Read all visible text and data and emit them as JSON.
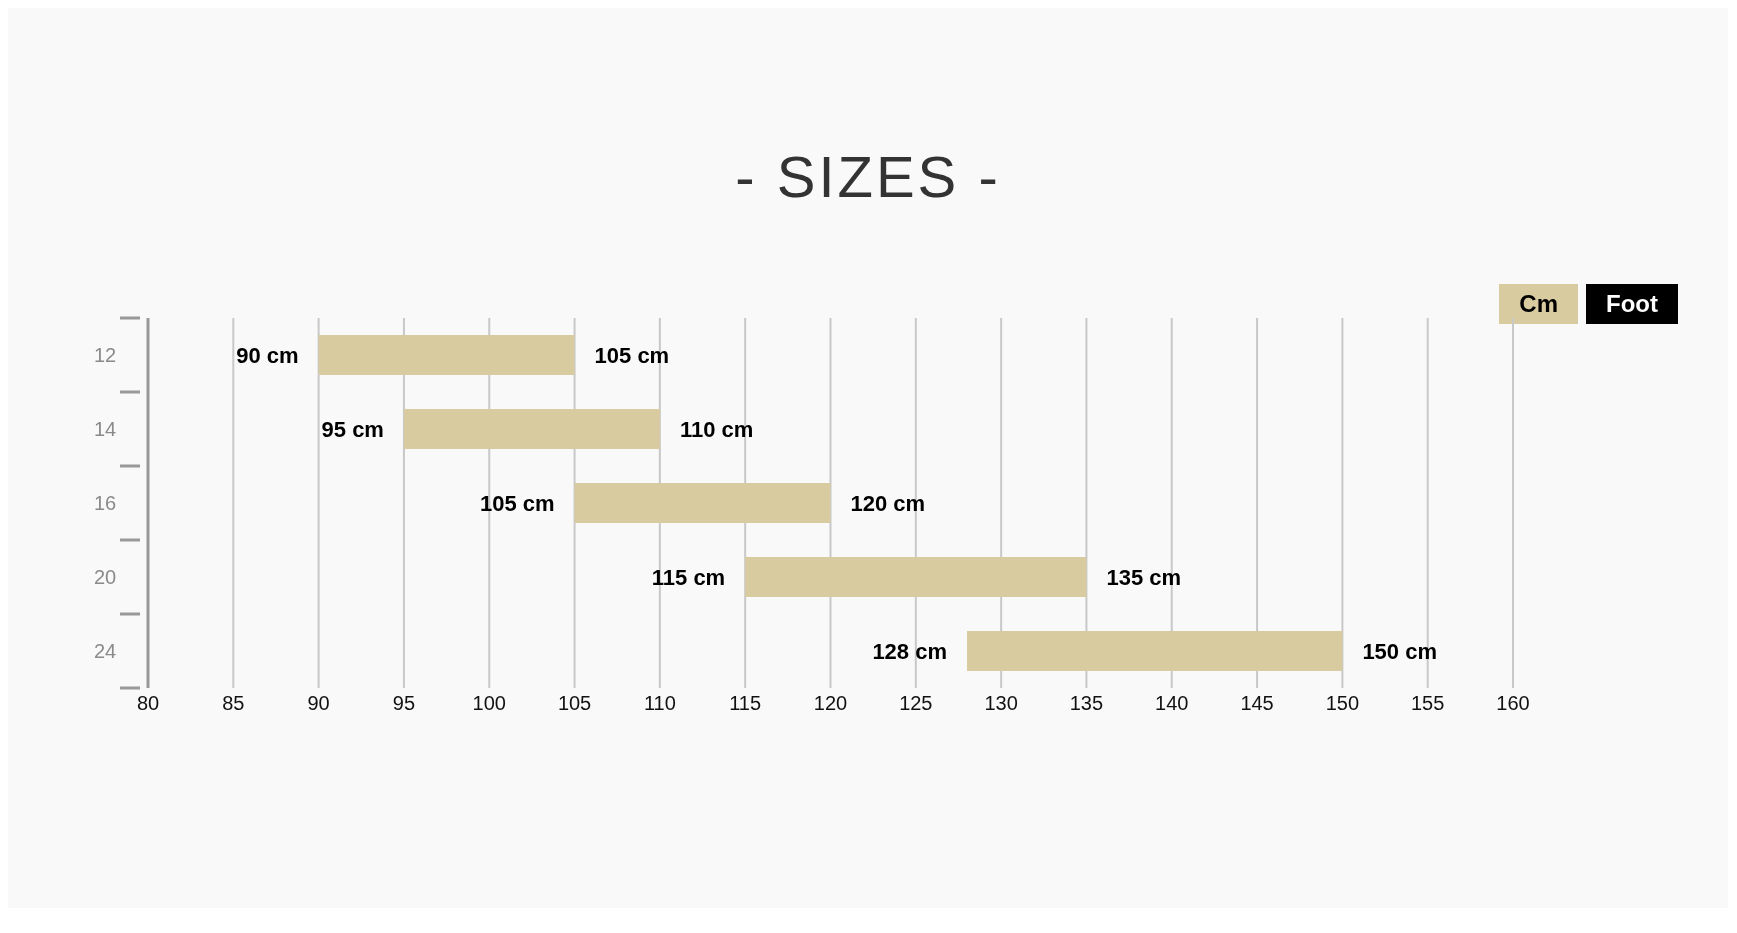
{
  "chart_data": {
    "type": "bar",
    "orientation": "horizontal",
    "title": "- SIZES -",
    "categories": [
      "12",
      "14",
      "16",
      "20",
      "24"
    ],
    "base": [
      90,
      95,
      105,
      115,
      128
    ],
    "values": [
      15,
      15,
      15,
      20,
      22
    ],
    "color": "#d9cba0",
    "xlim": [
      80,
      160
    ],
    "xticks": [
      80,
      85,
      90,
      95,
      100,
      105,
      110,
      115,
      120,
      125,
      130,
      135,
      140,
      145,
      150,
      155,
      160
    ],
    "grid": "x",
    "annotations": [
      {
        "text": "90 cm",
        "x": 90,
        "y": "12"
      },
      {
        "text": "105 cm",
        "x": 105,
        "y": "12"
      },
      {
        "text": "95 cm",
        "x": 95,
        "y": "14"
      },
      {
        "text": "110 cm",
        "x": 110,
        "y": "14"
      },
      {
        "text": "105 cm",
        "x": 105,
        "y": "16"
      },
      {
        "text": "120 cm",
        "x": 120,
        "y": "16"
      },
      {
        "text": "115 cm",
        "x": 115,
        "y": "20"
      },
      {
        "text": "135 cm",
        "x": 135,
        "y": "20"
      },
      {
        "text": "128 cm",
        "x": 128,
        "y": "24"
      },
      {
        "text": "150 cm",
        "x": 150,
        "y": "24"
      },
      "Cm",
      "Foot"
    ]
  }
}
